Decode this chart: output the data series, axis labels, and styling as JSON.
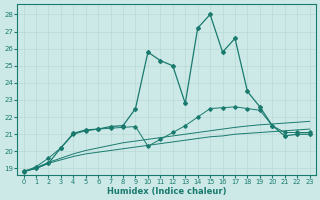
{
  "xlabel": "Humidex (Indice chaleur)",
  "xlim": [
    -0.5,
    23.5
  ],
  "ylim": [
    18.6,
    28.6
  ],
  "xticks": [
    0,
    1,
    2,
    3,
    4,
    5,
    6,
    7,
    8,
    9,
    10,
    11,
    12,
    13,
    14,
    15,
    16,
    17,
    18,
    19,
    20,
    21,
    22,
    23
  ],
  "yticks": [
    19,
    20,
    21,
    22,
    23,
    24,
    25,
    26,
    27,
    28
  ],
  "bg_color": "#cce9e7",
  "grid_color": "#b8d8d6",
  "line_color": "#1a7a6e",
  "line1_y": [
    18.8,
    19.0,
    19.3,
    19.5,
    19.7,
    19.85,
    19.95,
    20.05,
    20.15,
    20.25,
    20.35,
    20.45,
    20.55,
    20.65,
    20.75,
    20.85,
    20.9,
    21.0,
    21.05,
    21.1,
    21.15,
    21.2,
    21.25,
    21.3
  ],
  "line2_y": [
    18.8,
    19.05,
    19.35,
    19.6,
    19.85,
    20.05,
    20.2,
    20.35,
    20.5,
    20.6,
    20.7,
    20.8,
    20.9,
    21.0,
    21.1,
    21.2,
    21.3,
    21.4,
    21.48,
    21.55,
    21.6,
    21.65,
    21.7,
    21.75
  ],
  "line3_y": [
    18.8,
    19.1,
    19.6,
    20.2,
    21.0,
    21.2,
    21.3,
    21.35,
    21.4,
    21.45,
    20.3,
    20.7,
    21.1,
    21.5,
    22.0,
    22.5,
    22.55,
    22.6,
    22.5,
    22.4,
    21.5,
    21.1,
    21.1,
    21.1
  ],
  "line_main_y": [
    18.85,
    19.0,
    19.3,
    20.2,
    21.05,
    21.25,
    21.3,
    21.45,
    21.5,
    22.5,
    25.8,
    25.3,
    25.0,
    22.8,
    27.2,
    28.0,
    25.8,
    26.6,
    23.5,
    22.6,
    21.5,
    20.9,
    21.0,
    21.0
  ],
  "line3_has_markers": true,
  "line_main_has_markers": true
}
